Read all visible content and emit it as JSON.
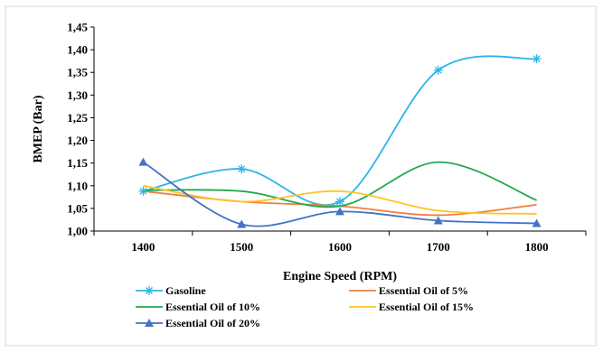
{
  "chart_data": {
    "type": "line",
    "title": "",
    "xlabel": "Engine Speed (RPM)",
    "ylabel": "BMEP (Bar)",
    "x": [
      1400,
      1500,
      1600,
      1700,
      1800
    ],
    "x_tick_labels": [
      "1400",
      "1500",
      "1600",
      "1700",
      "1800"
    ],
    "ylim": [
      1.0,
      1.45
    ],
    "y_tick_labels": [
      "1,00",
      "1,05",
      "1,10",
      "1,15",
      "1,20",
      "1,25",
      "1,30",
      "1,35",
      "1,40",
      "1,45"
    ],
    "grid": false,
    "legend_position": "bottom",
    "series": [
      {
        "name": "Gasoline",
        "color": "#2cb5e8",
        "marker": "asterisk",
        "values": [
          1.088,
          1.137,
          1.065,
          1.355,
          1.38
        ]
      },
      {
        "name": "Essential Oil of 5%",
        "color": "#ef7f3f",
        "marker": "none",
        "values": [
          1.088,
          1.065,
          1.055,
          1.035,
          1.058
        ]
      },
      {
        "name": "Essential Oil of 10%",
        "color": "#21a84f",
        "marker": "none",
        "values": [
          1.09,
          1.088,
          1.055,
          1.152,
          1.068
        ]
      },
      {
        "name": "Essential Oil of 15%",
        "color": "#ffc425",
        "marker": "none",
        "values": [
          1.1,
          1.065,
          1.088,
          1.045,
          1.038
        ]
      },
      {
        "name": "Essential Oil of 20%",
        "color": "#4472c4",
        "marker": "triangle",
        "values": [
          1.152,
          1.015,
          1.043,
          1.023,
          1.017
        ]
      }
    ]
  }
}
